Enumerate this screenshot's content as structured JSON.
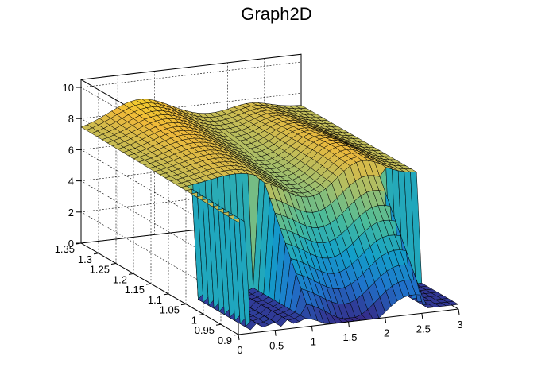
{
  "chart_data": {
    "type": "surface",
    "title": "Graph2D",
    "x_ticks": [
      "0",
      "0.5",
      "1",
      "1.5",
      "2",
      "2.5",
      "3"
    ],
    "y_ticks": [
      "0.9",
      "0.95",
      "1",
      "1.05",
      "1.1",
      "1.15",
      "1.2",
      "1.25",
      "1.3",
      "1.35"
    ],
    "z_ticks": [
      "0",
      "2",
      "4",
      "6",
      "8",
      "10"
    ],
    "x_range": [
      0,
      3
    ],
    "y_range": [
      0.9,
      1.35
    ],
    "z_range": [
      0,
      10.5
    ],
    "grid": true,
    "colormap": [
      "#352a87",
      "#1f74cc",
      "#13a0c8",
      "#47bb9c",
      "#a5be6a",
      "#efb93a",
      "#f9fb0e"
    ],
    "surface_description_points": [
      {
        "x": 0.0,
        "y": 1.35,
        "z": 7.4
      },
      {
        "x": 0.7,
        "y": 1.35,
        "z": 9.3
      },
      {
        "x": 1.5,
        "y": 1.35,
        "z": 8.2
      },
      {
        "x": 2.2,
        "y": 1.35,
        "z": 7.6
      },
      {
        "x": 3.0,
        "y": 1.35,
        "z": 7.0
      },
      {
        "x": 0.0,
        "y": 1.1,
        "z": 7.2
      },
      {
        "x": 1.0,
        "y": 1.1,
        "z": 7.5
      },
      {
        "x": 2.3,
        "y": 1.1,
        "z": 8.5
      },
      {
        "x": 2.7,
        "y": 1.05,
        "z": 6.5
      },
      {
        "x": 0.5,
        "y": 1.0,
        "z": 6.3
      },
      {
        "x": 1.5,
        "y": 1.0,
        "z": 4.5
      },
      {
        "x": 2.6,
        "y": 0.95,
        "z": 0.3
      },
      {
        "x": 0.3,
        "y": 0.9,
        "z": 0.5
      }
    ]
  }
}
